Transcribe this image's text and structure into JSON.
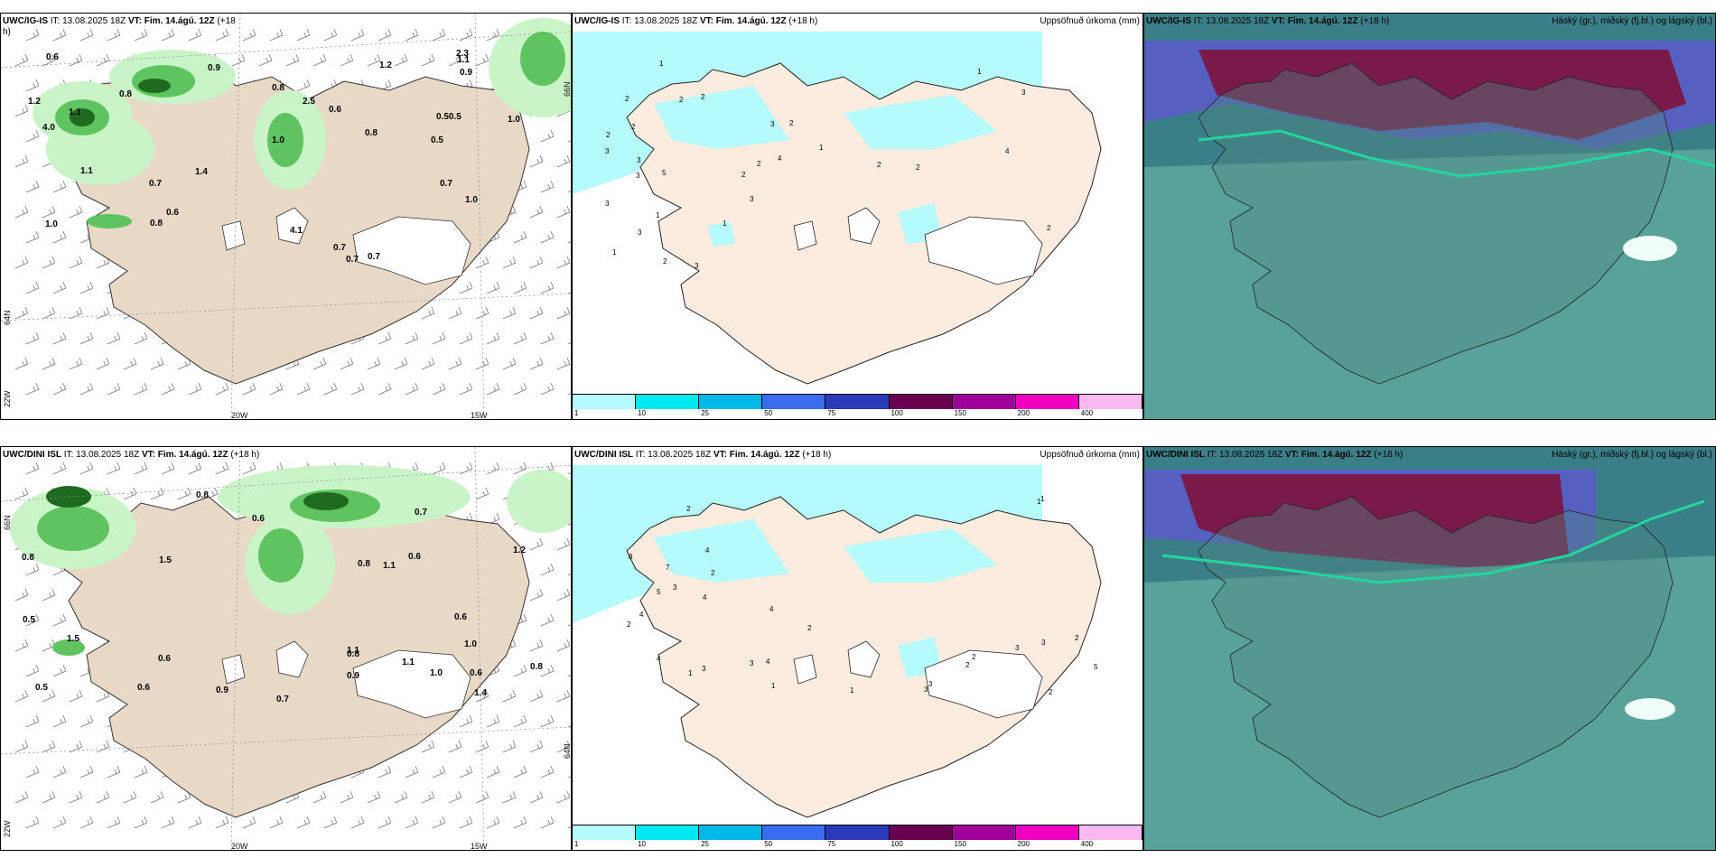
{
  "panels": {
    "ig_wind": {
      "model": "UWC/IG-IS",
      "it_label": "IT:",
      "it": "13.08.2025 18Z",
      "vt_label": "VT:",
      "vt": "Fim. 14.ágú. 12Z",
      "lead": "(+18",
      "lead_cont": "h)"
    },
    "ig_precip": {
      "model": "UWC/IG-IS",
      "it_label": "IT:",
      "it": "13.08.2025 18Z",
      "vt_label": "VT:",
      "vt": "Fim. 14.ágú. 12Z",
      "lead": "(+18 h)",
      "right": "Uppsöfnuð úrkoma (mm)"
    },
    "ig_cloud": {
      "model": "UWC/IG-IS",
      "it_label": "IT:",
      "it": "13.08.2025 18Z",
      "vt_label": "VT:",
      "vt": "Fim. 14.ágú. 12Z",
      "lead": "(+18 h)",
      "right": "Háský (gr.), miðský (fj.bl.) og lágský (bl.)"
    },
    "dini_wind": {
      "model": "UWC/DINI ISL",
      "it_label": "IT:",
      "it": "13.08.2025 18Z",
      "vt_label": "VT:",
      "vt": "Fim. 14.ágú. 12Z",
      "lead": "(+18 h)"
    },
    "dini_precip": {
      "model": "UWC/DINI ISL",
      "it_label": "IT:",
      "it": "13.08.2025 18Z",
      "vt_label": "VT:",
      "vt": "Fim. 14.ágú. 12Z",
      "lead": "(+18 h)",
      "right": "Uppsöfnuð úrkoma (mm)"
    },
    "dini_cloud": {
      "model": "UWC/DINI ISL",
      "it_label": "IT:",
      "it": "13.08.2025 18Z",
      "vt_label": "VT:",
      "vt": "Fim. 14.ágú. 12Z",
      "lead": "(+18 h)",
      "right": "Háský (gr.), miðský (fj.bl.) og lágský (bl.)"
    }
  },
  "axes": {
    "lon_20w": "20W",
    "lon_15w": "15W",
    "lat_66n": "66N",
    "lat_64n": "64N",
    "lon_22w": "22W"
  },
  "colorbar": {
    "ticks": [
      "1",
      "10",
      "25",
      "50",
      "75",
      "100",
      "150",
      "200",
      "400"
    ],
    "colors": [
      "#b6fbfb",
      "#00e8f0",
      "#00b8e8",
      "#3a6cf0",
      "#2a3ab8",
      "#6a0050",
      "#a0009a",
      "#f000c0",
      "#f8b8f0"
    ]
  },
  "colors": {
    "land": "#e8d9c6",
    "land_precip": "#fbecdf",
    "sea_wind": "#ffffff",
    "precip_light": "#c8f4c8",
    "precip_mid": "#5fc45f",
    "precip_dark": "#1e6a1e",
    "cloud_sea": "#3a7e88",
    "cloud_low": "#5fa89c",
    "cloud_mid": "#7a1a4a",
    "cloud_high": "#5560c0"
  },
  "precip_labels_ig": [
    "0.7",
    "2.5",
    "1.2",
    "0.9",
    "4.0",
    "4.1",
    "0.8",
    "1.0",
    "1.1",
    "0.9",
    "1.4",
    "0.7",
    "0.7",
    "0.50.5",
    "1.0",
    "0.8",
    "0.6",
    "2.3",
    "1.2",
    "1.0",
    "1.1",
    "0.6",
    "0.8",
    "0.6",
    "0.7",
    "0.8",
    "1.0",
    "1.1",
    "0.7",
    "0.5"
  ],
  "precip_labels_dini": [
    "0.8",
    "1.4",
    "1.5",
    "0.8",
    "0.6",
    "1.1",
    "0.8",
    "1.1",
    "1.5",
    "0.9",
    "0.7",
    "0.8",
    "0.6",
    "1.0",
    "0.7",
    "0.6",
    "1.0",
    "0.6",
    "0.6",
    "0.5",
    "1.2",
    "0.6",
    "0.8",
    "1.1",
    "0.9",
    "0.5"
  ],
  "mm_labels_ig": [
    "5",
    "2",
    "2",
    "3",
    "2",
    "3",
    "3",
    "2",
    "2",
    "2",
    "3",
    "1",
    "2",
    "3",
    "3",
    "1",
    "2",
    "2",
    "4",
    "3",
    "2",
    "1",
    "3",
    "1",
    "2",
    "1",
    "4",
    "3",
    "2",
    "1"
  ],
  "mm_labels_dini": [
    "3",
    "4",
    "4",
    "2",
    "3",
    "3",
    "1",
    "4",
    "7",
    "8",
    "2",
    "5",
    "2",
    "3",
    "5",
    "3",
    "4",
    "2",
    "1",
    "2",
    "2",
    "3",
    "4",
    "1",
    "2",
    "1",
    "3",
    "4",
    "1",
    "2"
  ]
}
